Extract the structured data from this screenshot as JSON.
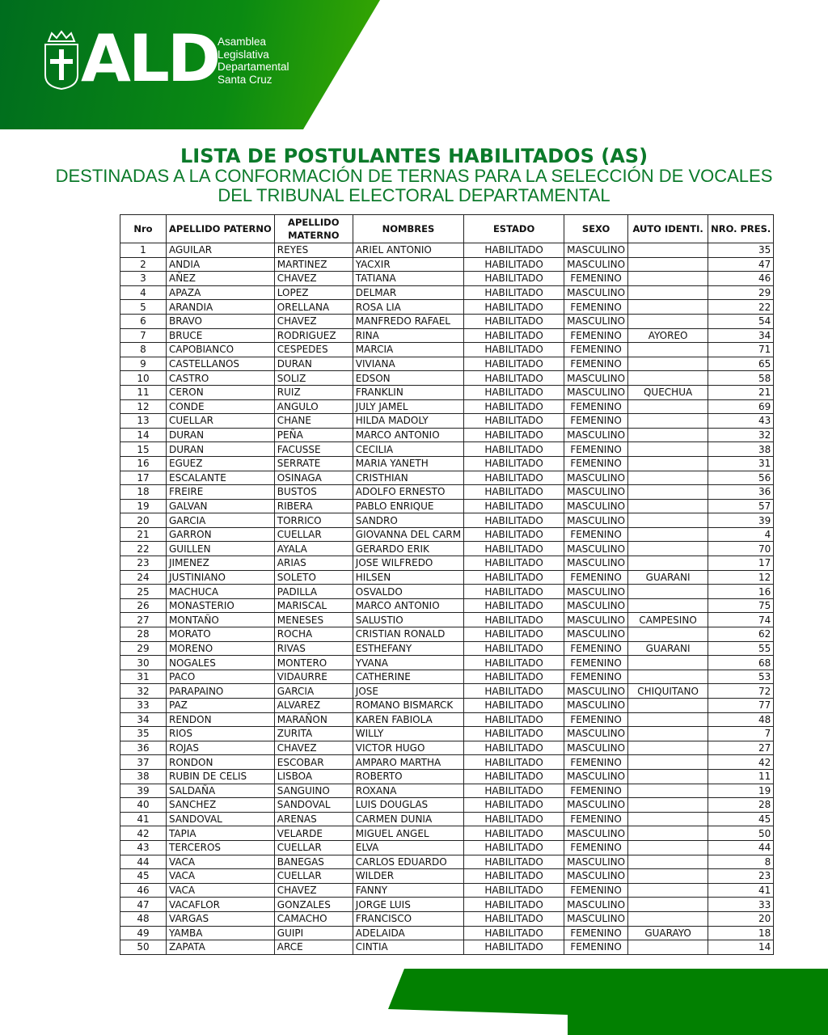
{
  "header": {
    "logo_text": "ALD",
    "org_lines": [
      "Asamblea",
      "Legislativa",
      "Departamental",
      "Santa Cruz"
    ],
    "brand_color": "#0a8a12"
  },
  "title": {
    "line1": "LISTA DE POSTULANTES HABILITADOS (AS)",
    "line2": "DESTINADAS A LA CONFORMACIÓN DE TERNAS PARA LA SELECCIÓN DE VOCALES",
    "line3": "DEL TRIBUNAL ELECTORAL DEPARTAMENTAL"
  },
  "table": {
    "headers": [
      "Nro",
      "APELLIDO PATERNO",
      "APELLIDO MATERNO",
      "NOMBRES",
      "ESTADO",
      "SEXO",
      "AUTO IDENTI.",
      "NRO. PRES."
    ],
    "rows": [
      [
        "1",
        "AGUILAR",
        "REYES",
        "ARIEL ANTONIO",
        "HABILITADO",
        "MASCULINO",
        "",
        "35"
      ],
      [
        "2",
        "ANDIA",
        "MARTINEZ",
        "YACXIR",
        "HABILITADO",
        "MASCULINO",
        "",
        "47"
      ],
      [
        "3",
        "AÑEZ",
        "CHAVEZ",
        "TATIANA",
        "HABILITADO",
        "FEMENINO",
        "",
        "46"
      ],
      [
        "4",
        "APAZA",
        "LOPEZ",
        "DELMAR",
        "HABILITADO",
        "MASCULINO",
        "",
        "29"
      ],
      [
        "5",
        "ARANDIA",
        "ORELLANA",
        "ROSA LIA",
        "HABILITADO",
        "FEMENINO",
        "",
        "22"
      ],
      [
        "6",
        "BRAVO",
        "CHAVEZ",
        "MANFREDO RAFAEL",
        "HABILITADO",
        "MASCULINO",
        "",
        "54"
      ],
      [
        "7",
        "BRUCE",
        "RODRIGUEZ",
        "RINA",
        "HABILITADO",
        "FEMENINO",
        "AYOREO",
        "34"
      ],
      [
        "8",
        "CAPOBIANCO",
        "CESPEDES",
        "MARCIA",
        "HABILITADO",
        "FEMENINO",
        "",
        "71"
      ],
      [
        "9",
        "CASTELLANOS",
        "DURAN",
        "VIVIANA",
        "HABILITADO",
        "FEMENINO",
        "",
        "65"
      ],
      [
        "10",
        "CASTRO",
        "SOLIZ",
        "EDSON",
        "HABILITADO",
        "MASCULINO",
        "",
        "58"
      ],
      [
        "11",
        "CERON",
        "RUIZ",
        "FRANKLIN",
        "HABILITADO",
        "MASCULINO",
        "QUECHUA",
        "21"
      ],
      [
        "12",
        "CONDE",
        "ANGULO",
        "JULY JAMEL",
        "HABILITADO",
        "FEMENINO",
        "",
        "69"
      ],
      [
        "13",
        "CUELLAR",
        "CHANE",
        "HILDA MADOLY",
        "HABILITADO",
        "FEMENINO",
        "",
        "43"
      ],
      [
        "14",
        "DURAN",
        "PEÑA",
        "MARCO ANTONIO",
        "HABILITADO",
        "MASCULINO",
        "",
        "32"
      ],
      [
        "15",
        "DURAN",
        "FACUSSE",
        "CECILIA",
        "HABILITADO",
        "FEMENINO",
        "",
        "38"
      ],
      [
        "16",
        "EGUEZ",
        "SERRATE",
        "MARIA YANETH",
        "HABILITADO",
        "FEMENINO",
        "",
        "31"
      ],
      [
        "17",
        "ESCALANTE",
        "OSINAGA",
        "CRISTHIAN",
        "HABILITADO",
        "MASCULINO",
        "",
        "56"
      ],
      [
        "18",
        "FREIRE",
        "BUSTOS",
        "ADOLFO ERNESTO",
        "HABILITADO",
        "MASCULINO",
        "",
        "36"
      ],
      [
        "19",
        "GALVAN",
        "RIBERA",
        "PABLO ENRIQUE",
        "HABILITADO",
        "MASCULINO",
        "",
        "57"
      ],
      [
        "20",
        "GARCIA",
        "TORRICO",
        "SANDRO",
        "HABILITADO",
        "MASCULINO",
        "",
        "39"
      ],
      [
        "21",
        "GARRON",
        "CUELLAR",
        "GIOVANNA DEL CARM",
        "HABILITADO",
        "FEMENINO",
        "",
        "4"
      ],
      [
        "22",
        "GUILLEN",
        "AYALA",
        "GERARDO ERIK",
        "HABILITADO",
        "MASCULINO",
        "",
        "70"
      ],
      [
        "23",
        "JIMENEZ",
        "ARIAS",
        "JOSE WILFREDO",
        "HABILITADO",
        "MASCULINO",
        "",
        "17"
      ],
      [
        "24",
        "JUSTINIANO",
        "SOLETO",
        "HILSEN",
        "HABILITADO",
        "FEMENINO",
        "GUARANI",
        "12"
      ],
      [
        "25",
        "MACHUCA",
        "PADILLA",
        "OSVALDO",
        "HABILITADO",
        "MASCULINO",
        "",
        "16"
      ],
      [
        "26",
        "MONASTERIO",
        "MARISCAL",
        "MARCO ANTONIO",
        "HABILITADO",
        "MASCULINO",
        "",
        "75"
      ],
      [
        "27",
        "MONTAÑO",
        "MENESES",
        "SALUSTIO",
        "HABILITADO",
        "MASCULINO",
        "CAMPESINO",
        "74"
      ],
      [
        "28",
        "MORATO",
        "ROCHA",
        "CRISTIAN RONALD",
        "HABILITADO",
        "MASCULINO",
        "",
        "62"
      ],
      [
        "29",
        "MORENO",
        "RIVAS",
        "ESTHEFANY",
        "HABILITADO",
        "FEMENINO",
        "GUARANI",
        "55"
      ],
      [
        "30",
        "NOGALES",
        "MONTERO",
        "YVANA",
        "HABILITADO",
        "FEMENINO",
        "",
        "68"
      ],
      [
        "31",
        "PACO",
        "VIDAURRE",
        "CATHERINE",
        "HABILITADO",
        "FEMENINO",
        "",
        "53"
      ],
      [
        "32",
        "PARAPAINO",
        "GARCIA",
        "JOSE",
        "HABILITADO",
        "MASCULINO",
        "CHIQUITANO",
        "72"
      ],
      [
        "33",
        "PAZ",
        "ALVAREZ",
        "ROMANO BISMARCK",
        "HABILITADO",
        "MASCULINO",
        "",
        "77"
      ],
      [
        "34",
        "RENDON",
        "MARAÑON",
        "KAREN FABIOLA",
        "HABILITADO",
        "FEMENINO",
        "",
        "48"
      ],
      [
        "35",
        "RIOS",
        "ZURITA",
        "WILLY",
        "HABILITADO",
        "MASCULINO",
        "",
        "7"
      ],
      [
        "36",
        "ROJAS",
        "CHAVEZ",
        "VICTOR HUGO",
        "HABILITADO",
        "MASCULINO",
        "",
        "27"
      ],
      [
        "37",
        "RONDON",
        "ESCOBAR",
        "AMPARO MARTHA",
        "HABILITADO",
        "FEMENINO",
        "",
        "42"
      ],
      [
        "38",
        "RUBIN DE CELIS",
        "LISBOA",
        "ROBERTO",
        "HABILITADO",
        "MASCULINO",
        "",
        "11"
      ],
      [
        "39",
        "SALDAÑA",
        "SANGUINO",
        "ROXANA",
        "HABILITADO",
        "FEMENINO",
        "",
        "19"
      ],
      [
        "40",
        "SANCHEZ",
        "SANDOVAL",
        "LUIS DOUGLAS",
        "HABILITADO",
        "MASCULINO",
        "",
        "28"
      ],
      [
        "41",
        "SANDOVAL",
        "ARENAS",
        "CARMEN DUNIA",
        "HABILITADO",
        "FEMENINO",
        "",
        "45"
      ],
      [
        "42",
        "TAPIA",
        "VELARDE",
        "MIGUEL ANGEL",
        "HABILITADO",
        "MASCULINO",
        "",
        "50"
      ],
      [
        "43",
        "TERCEROS",
        "CUELLAR",
        "ELVA",
        "HABILITADO",
        "FEMENINO",
        "",
        "44"
      ],
      [
        "44",
        "VACA",
        "BANEGAS",
        "CARLOS EDUARDO",
        "HABILITADO",
        "MASCULINO",
        "",
        "8"
      ],
      [
        "45",
        "VACA",
        "CUELLAR",
        "WILDER",
        "HABILITADO",
        "MASCULINO",
        "",
        "23"
      ],
      [
        "46",
        "VACA",
        "CHAVEZ",
        "FANNY",
        "HABILITADO",
        "FEMENINO",
        "",
        "41"
      ],
      [
        "47",
        "VACAFLOR",
        "GONZALES",
        "JORGE LUIS",
        "HABILITADO",
        "MASCULINO",
        "",
        "33"
      ],
      [
        "48",
        "VARGAS",
        "CAMACHO",
        "FRANCISCO",
        "HABILITADO",
        "MASCULINO",
        "",
        "20"
      ],
      [
        "49",
        "YAMBA",
        "GUIPI",
        "ADELAIDA",
        "HABILITADO",
        "FEMENINO",
        "GUARAYO",
        "18"
      ],
      [
        "50",
        "ZAPATA",
        "ARCE",
        "CINTIA",
        "HABILITADO",
        "FEMENINO",
        "",
        "14"
      ]
    ]
  }
}
